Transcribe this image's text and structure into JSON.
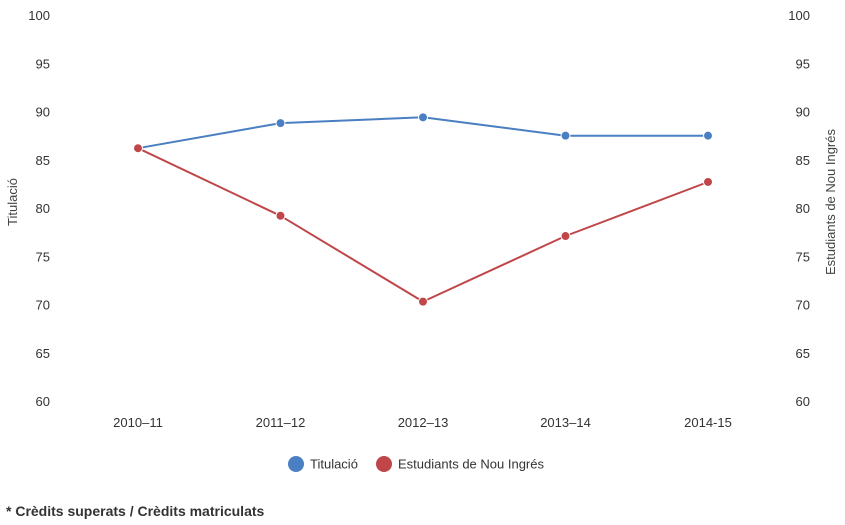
{
  "chart_data": {
    "type": "line",
    "categories": [
      "2010–11",
      "2011–12",
      "2012–13",
      "2013–14",
      "2014-15"
    ],
    "series": [
      {
        "name": "Titulació",
        "color": "#4a7fc1",
        "values": [
          86.3,
          88.9,
          89.5,
          87.6,
          87.6
        ]
      },
      {
        "name": "Estudiants de Nou Ingrés",
        "color": "#c0464a",
        "values": [
          86.3,
          79.3,
          70.4,
          77.2,
          82.8
        ]
      }
    ],
    "ylim": [
      60,
      100
    ],
    "y_ticks": [
      "60",
      "65",
      "70",
      "75",
      "80",
      "85",
      "90",
      "95",
      "100"
    ],
    "y_left_label": "Titulació",
    "y_right_label": "Estudiants de Nou Ingrés",
    "legend_position": "bottom-center",
    "grid": false
  },
  "footnote": "* Crèdits superats / Crèdits matriculats"
}
